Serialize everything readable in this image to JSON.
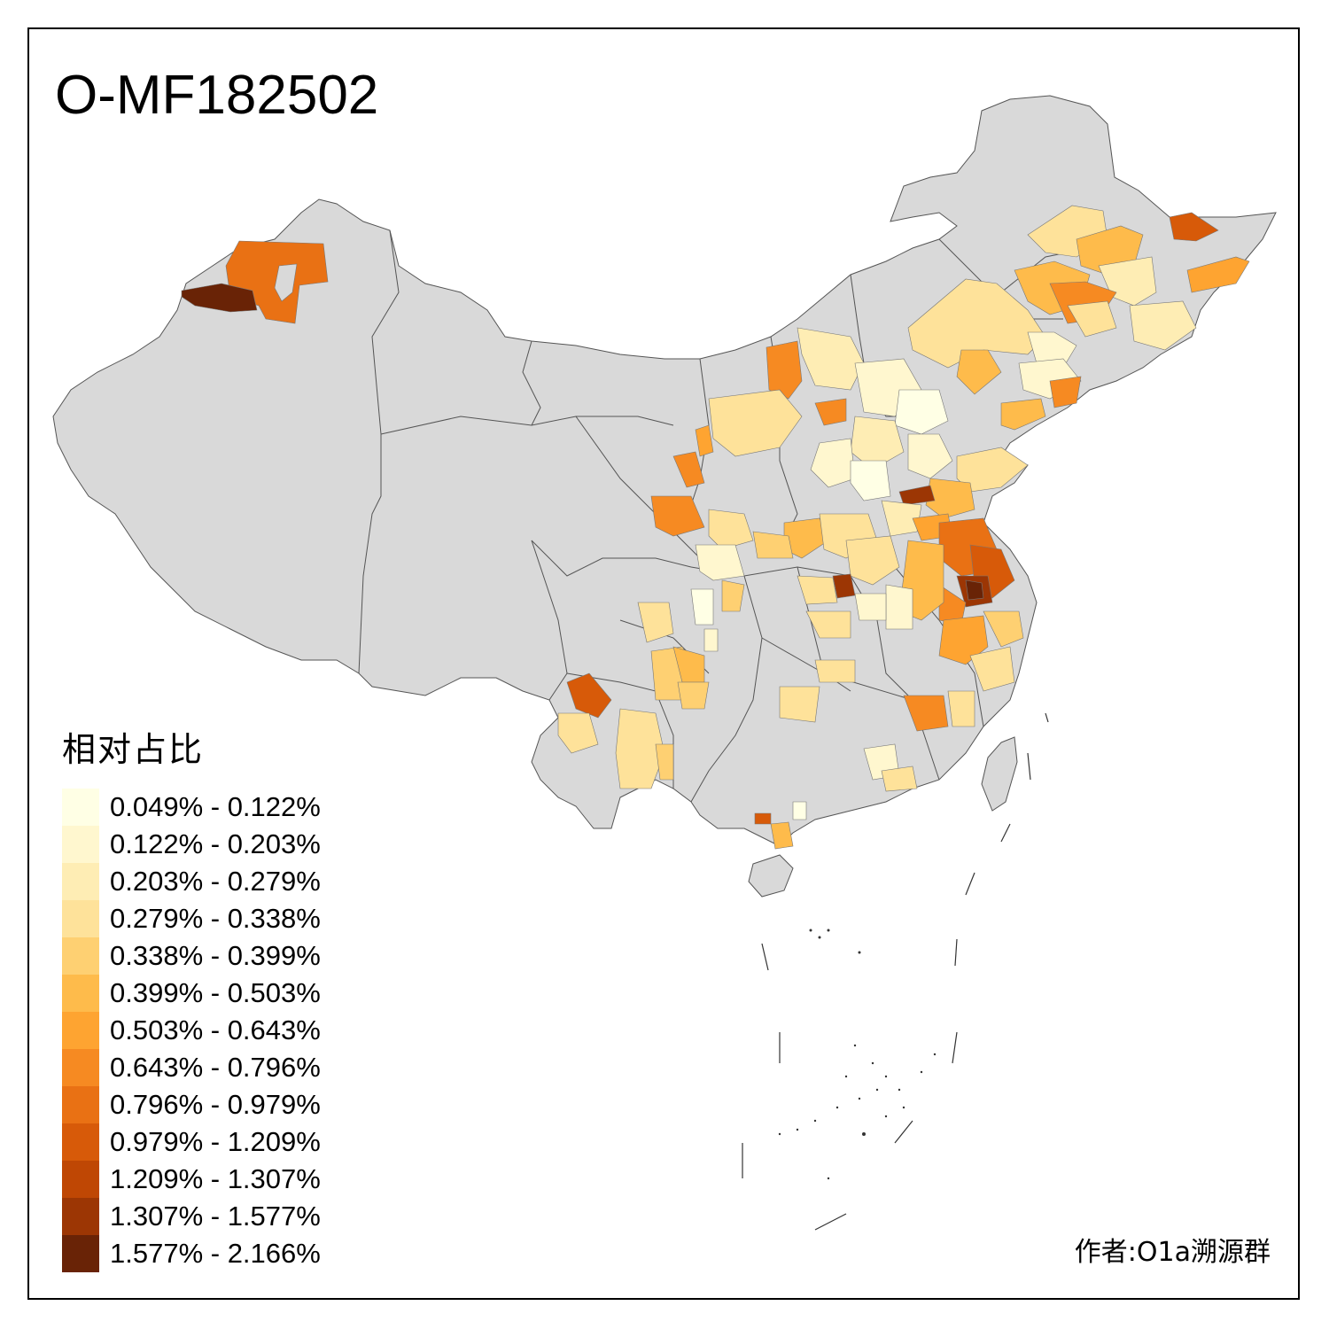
{
  "title": "O-MF182502",
  "legend": {
    "title": "相对占比",
    "items": [
      {
        "label": "0.049% - 0.122%",
        "color": "#ffffe5"
      },
      {
        "label": "0.122% - 0.203%",
        "color": "#fff7cf"
      },
      {
        "label": "0.203% - 0.279%",
        "color": "#feedb4"
      },
      {
        "label": "0.279% - 0.338%",
        "color": "#fee29a"
      },
      {
        "label": "0.338% - 0.399%",
        "color": "#fed072"
      },
      {
        "label": "0.399% - 0.503%",
        "color": "#febb4b"
      },
      {
        "label": "0.503% - 0.643%",
        "color": "#fea431"
      },
      {
        "label": "0.643% - 0.796%",
        "color": "#f68a22"
      },
      {
        "label": "0.796% - 0.979%",
        "color": "#e97114"
      },
      {
        "label": "0.979% - 1.209%",
        "color": "#d75a09"
      },
      {
        "label": "1.209% - 1.307%",
        "color": "#bf4704"
      },
      {
        "label": "1.307% - 1.577%",
        "color": "#9c3604"
      },
      {
        "label": "1.577% - 2.166%",
        "color": "#692306"
      }
    ]
  },
  "credit": "作者:O1a溯源群",
  "map": {
    "base_fill": "#d9d9d9",
    "border_color": "#555555"
  }
}
